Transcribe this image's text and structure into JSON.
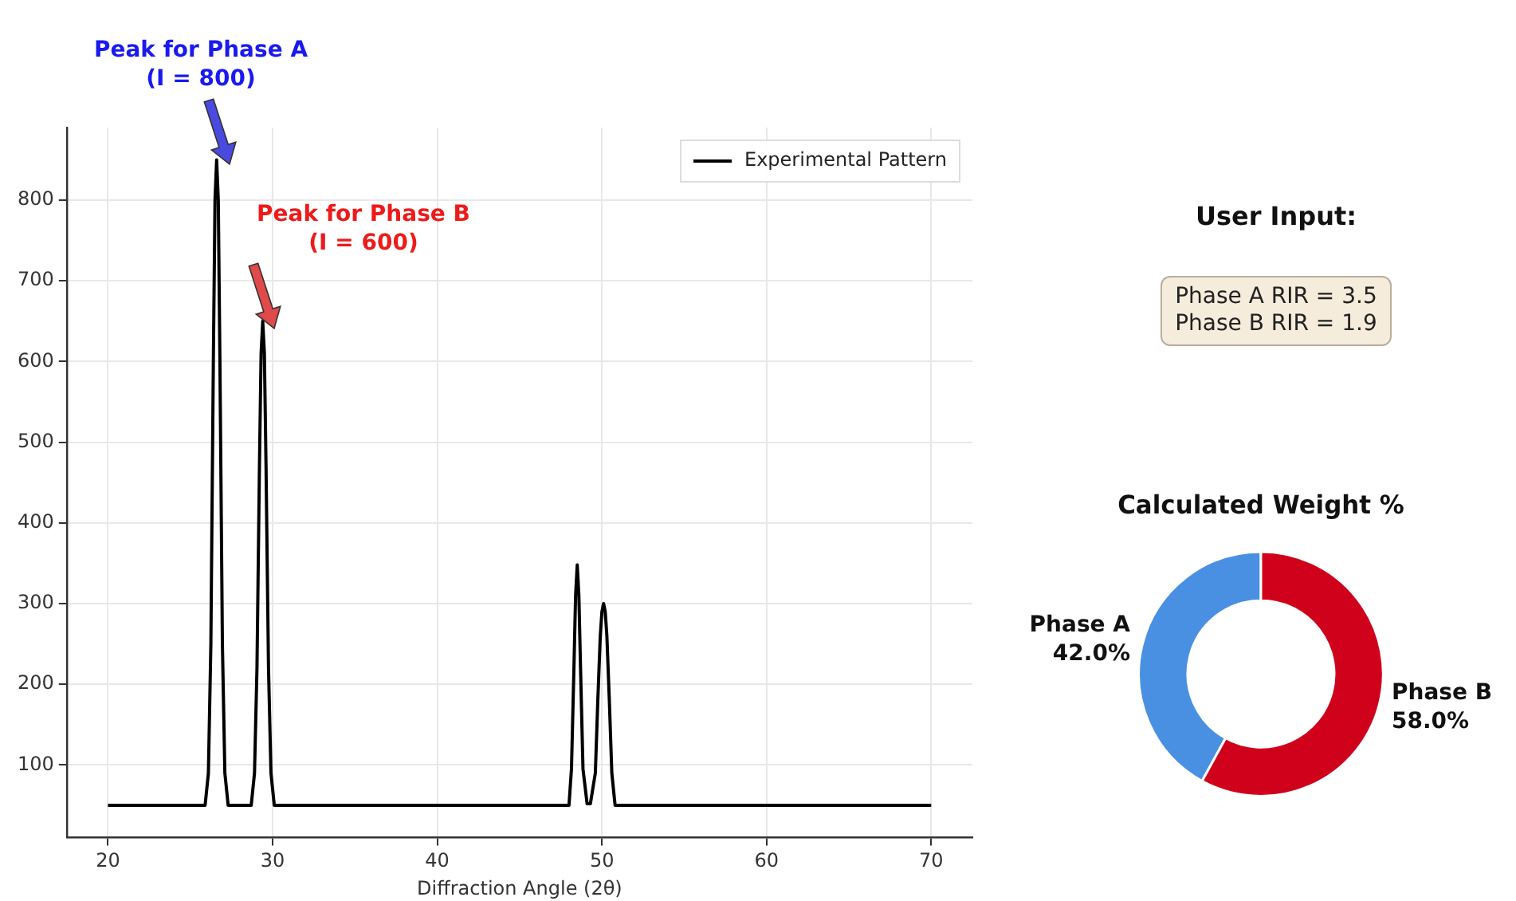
{
  "chart_data": [
    {
      "type": "line",
      "xlabel": "Diffraction Angle (2θ)",
      "xlim": [
        17.5,
        72.5
      ],
      "ylim": [
        10,
        890
      ],
      "xticks": [
        20,
        30,
        40,
        50,
        60,
        70
      ],
      "yticks": [
        100,
        200,
        300,
        400,
        500,
        600,
        700,
        800
      ],
      "grid": true,
      "legend": "top right",
      "marker": "none",
      "line_style": "solid",
      "annotations": [
        "Peak for Phase A\n(I = 800)",
        "Peak for Phase B\n(I = 600)"
      ],
      "series": [
        {
          "name": "Experimental Pattern",
          "color": "#000000",
          "x": [
            20,
            25.9,
            26.1,
            26.25,
            26.4,
            26.5,
            26.6,
            26.7,
            26.8,
            26.95,
            27.1,
            27.3,
            28.7,
            28.9,
            29.05,
            29.2,
            29.3,
            29.4,
            29.5,
            29.6,
            29.75,
            29.9,
            30.1,
            48.0,
            48.15,
            48.3,
            48.4,
            48.5,
            48.6,
            48.7,
            48.85,
            49.1,
            49.3,
            49.6,
            49.75,
            49.9,
            50.0,
            50.1,
            50.2,
            50.3,
            50.45,
            50.6,
            50.8,
            70
          ],
          "values": [
            50,
            50,
            90,
            250,
            600,
            800,
            850,
            800,
            600,
            250,
            90,
            50,
            50,
            90,
            220,
            470,
            610,
            650,
            610,
            470,
            220,
            90,
            50,
            50,
            95,
            220,
            310,
            348,
            310,
            220,
            95,
            52,
            52,
            90,
            180,
            260,
            290,
            300,
            290,
            260,
            180,
            90,
            50,
            50
          ]
        }
      ]
    },
    {
      "type": "other",
      "title": "User Input:",
      "annotations": [
        "Phase A RIR = 3.5",
        "Phase B RIR = 1.9"
      ]
    },
    {
      "type": "donut",
      "title": "Calculated Weight %",
      "categories": [
        "Phase A",
        "Phase B"
      ],
      "values": [
        42.0,
        58.0
      ],
      "colors": [
        "#4a90e2",
        "#d0021b"
      ],
      "value_labels": [
        "42.0%",
        "58.0%"
      ]
    }
  ]
}
